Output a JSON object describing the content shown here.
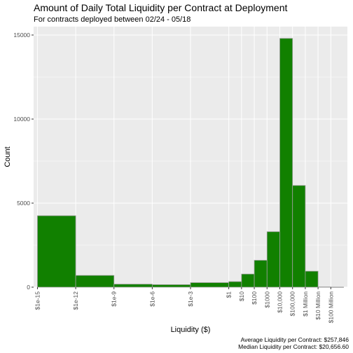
{
  "chart_data": {
    "type": "bar",
    "title": "Amount of Daily Total Liquidity per Contract at Deployment",
    "subtitle": "For contracts deployed between 02/24 - 05/18",
    "xlabel": "Liquidity ($)",
    "ylabel": "Count",
    "ylim": [
      0,
      15500
    ],
    "y_ticks": [
      0,
      5000,
      10000,
      15000
    ],
    "x_scale": "log10",
    "xlim_log10": [
      -15.3,
      9.3
    ],
    "x_ticks": [
      {
        "label": "$1e-15",
        "log10": -15
      },
      {
        "label": "$1e-12",
        "log10": -12
      },
      {
        "label": "$1e-9",
        "log10": -9
      },
      {
        "label": "$1e-6",
        "log10": -6
      },
      {
        "label": "$1e-3",
        "log10": -3
      },
      {
        "label": "$1",
        "log10": 0
      },
      {
        "label": "$10",
        "log10": 1
      },
      {
        "label": "$100",
        "log10": 2
      },
      {
        "label": "$1000",
        "log10": 3
      },
      {
        "label": "$10,000",
        "log10": 4
      },
      {
        "label": "$100,000",
        "log10": 5
      },
      {
        "label": "$1 Million",
        "log10": 6
      },
      {
        "label": "$10 Million",
        "log10": 7
      },
      {
        "label": "$100 Million",
        "log10": 8
      }
    ],
    "bins": [
      {
        "from_log10": -15,
        "to_log10": -12,
        "count": 4250
      },
      {
        "from_log10": -12,
        "to_log10": -9,
        "count": 700
      },
      {
        "from_log10": -9,
        "to_log10": -6,
        "count": 180
      },
      {
        "from_log10": -6,
        "to_log10": -3,
        "count": 150
      },
      {
        "from_log10": -3,
        "to_log10": 0,
        "count": 270
      },
      {
        "from_log10": 0,
        "to_log10": 1,
        "count": 330
      },
      {
        "from_log10": 1,
        "to_log10": 2,
        "count": 780
      },
      {
        "from_log10": 2,
        "to_log10": 3,
        "count": 1600
      },
      {
        "from_log10": 3,
        "to_log10": 4,
        "count": 3300
      },
      {
        "from_log10": 4,
        "to_log10": 5,
        "count": 14800
      },
      {
        "from_log10": 5,
        "to_log10": 6,
        "count": 6050
      },
      {
        "from_log10": 6,
        "to_log10": 7,
        "count": 950
      },
      {
        "from_log10": 7,
        "to_log10": 8,
        "count": 15
      },
      {
        "from_log10": 8,
        "to_log10": 9,
        "count": 5
      }
    ],
    "grid": true,
    "legend": "none",
    "colors": {
      "bar_fill": "#118000",
      "bar_stroke": "#9e9e9e",
      "panel": "#ebebeb",
      "grid": "#ffffff"
    }
  },
  "captions": [
    "Average Liquidity per Contract: $257,846",
    "Median Liquidity per Contract: $20,656.60"
  ]
}
